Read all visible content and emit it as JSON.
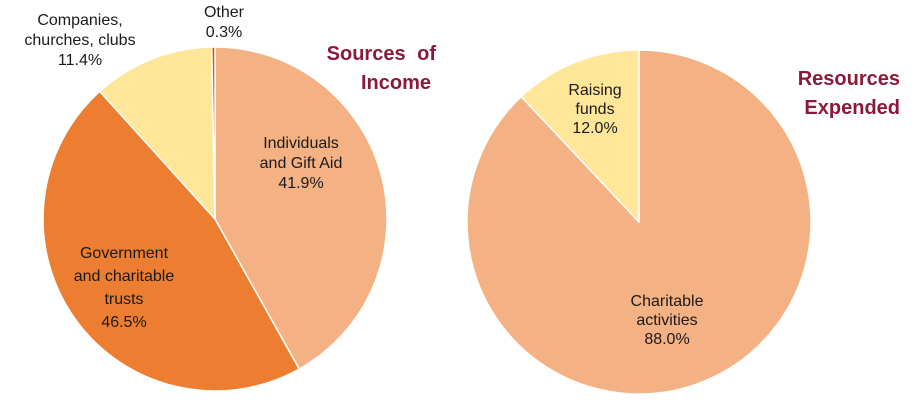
{
  "chart_data": [
    {
      "type": "pie",
      "title": [
        "Sources of",
        "Income"
      ],
      "slices": [
        {
          "label": [
            "Individuals",
            "and Gift Aid"
          ],
          "value": 41.9,
          "display": "41.9%",
          "color": "#f4b183"
        },
        {
          "label": [
            "Government",
            "and charitable",
            "trusts"
          ],
          "value": 46.5,
          "display": "46.5%",
          "color": "#ed7d31"
        },
        {
          "label": [
            "Companies,",
            "churches, clubs"
          ],
          "value": 11.4,
          "display": "11.4%",
          "color": "#ffe699"
        },
        {
          "label": [
            "Other"
          ],
          "value": 0.3,
          "display": "0.3%",
          "color": "#c55a11"
        }
      ]
    },
    {
      "type": "pie",
      "title": [
        "Resources",
        "Expended"
      ],
      "slices": [
        {
          "label": [
            "Charitable",
            "activities"
          ],
          "value": 88.0,
          "display": "88.0%",
          "color": "#f4b183"
        },
        {
          "label": [
            "Raising",
            "funds"
          ],
          "value": 12.0,
          "display": "12.0%",
          "color": "#ffe699"
        }
      ]
    }
  ]
}
